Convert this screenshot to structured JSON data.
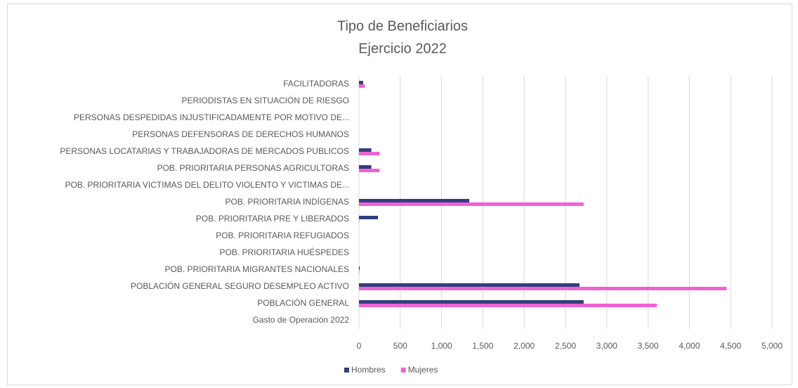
{
  "chart_data": {
    "type": "hbar",
    "title": "Tipo de Beneficiarios",
    "subtitle": "Ejercicio 2022",
    "categories": [
      "FACILITADORAS",
      "PERIODISTAS EN SITUACIÓN DE RIESGO",
      "PERSONAS DESPEDIDAS INJUSTIFICADAMENTE POR MOTIVO DE...",
      "PERSONAS DEFENSORAS DE DERECHOS HUMANOS",
      "PERSONAS LOCATARIAS Y TRABAJADORAS DE MERCADOS PUBLICOS",
      "POB. PRIORITARIA PERSONAS AGRICULTORAS",
      "POB. PRIORITARIA VICTIMAS DEL DELITO VIOLENTO Y VICTIMAS DE...",
      "POB. PRIORITARIA INDÍGENAS",
      "POB. PRIORITARIA PRE Y LIBERADOS",
      "POB. PRIORITARIA REFUGIADOS",
      "POB. PRIORITARIA HUÉSPEDES",
      "POB. PRIORITARIA MIGRANTES NACIONALES",
      "POBLACIÓN GENERAL SEGURO DESEMPLEO ACTIVO",
      "POBLACIÓN GENERAL",
      "Gasto de Operación 2022"
    ],
    "series": [
      {
        "name": "Hombres",
        "color": "#323e7e",
        "values": [
          50,
          0,
          0,
          0,
          150,
          150,
          0,
          1335,
          230,
          0,
          0,
          10,
          2670,
          2720,
          0
        ]
      },
      {
        "name": "Mujeres",
        "color": "#f062d4",
        "values": [
          70,
          0,
          0,
          0,
          250,
          250,
          0,
          2720,
          5,
          0,
          0,
          5,
          4450,
          3605,
          0
        ]
      }
    ],
    "xlim": [
      0,
      5000
    ],
    "xticks": [
      0,
      500,
      {
        "value": 1000,
        "label": "1,000"
      },
      {
        "value": 1500,
        "label": "1,500"
      },
      {
        "value": 2000,
        "label": "2,000"
      },
      {
        "value": 2500,
        "label": "2,500"
      },
      {
        "value": 3000,
        "label": "3,000"
      },
      {
        "value": 3500,
        "label": "3,500"
      },
      {
        "value": 4000,
        "label": "4,000"
      },
      {
        "value": 4500,
        "label": "4,500"
      },
      {
        "value": 5000,
        "label": "5,000"
      }
    ],
    "grid": true,
    "legend": "bottom"
  }
}
